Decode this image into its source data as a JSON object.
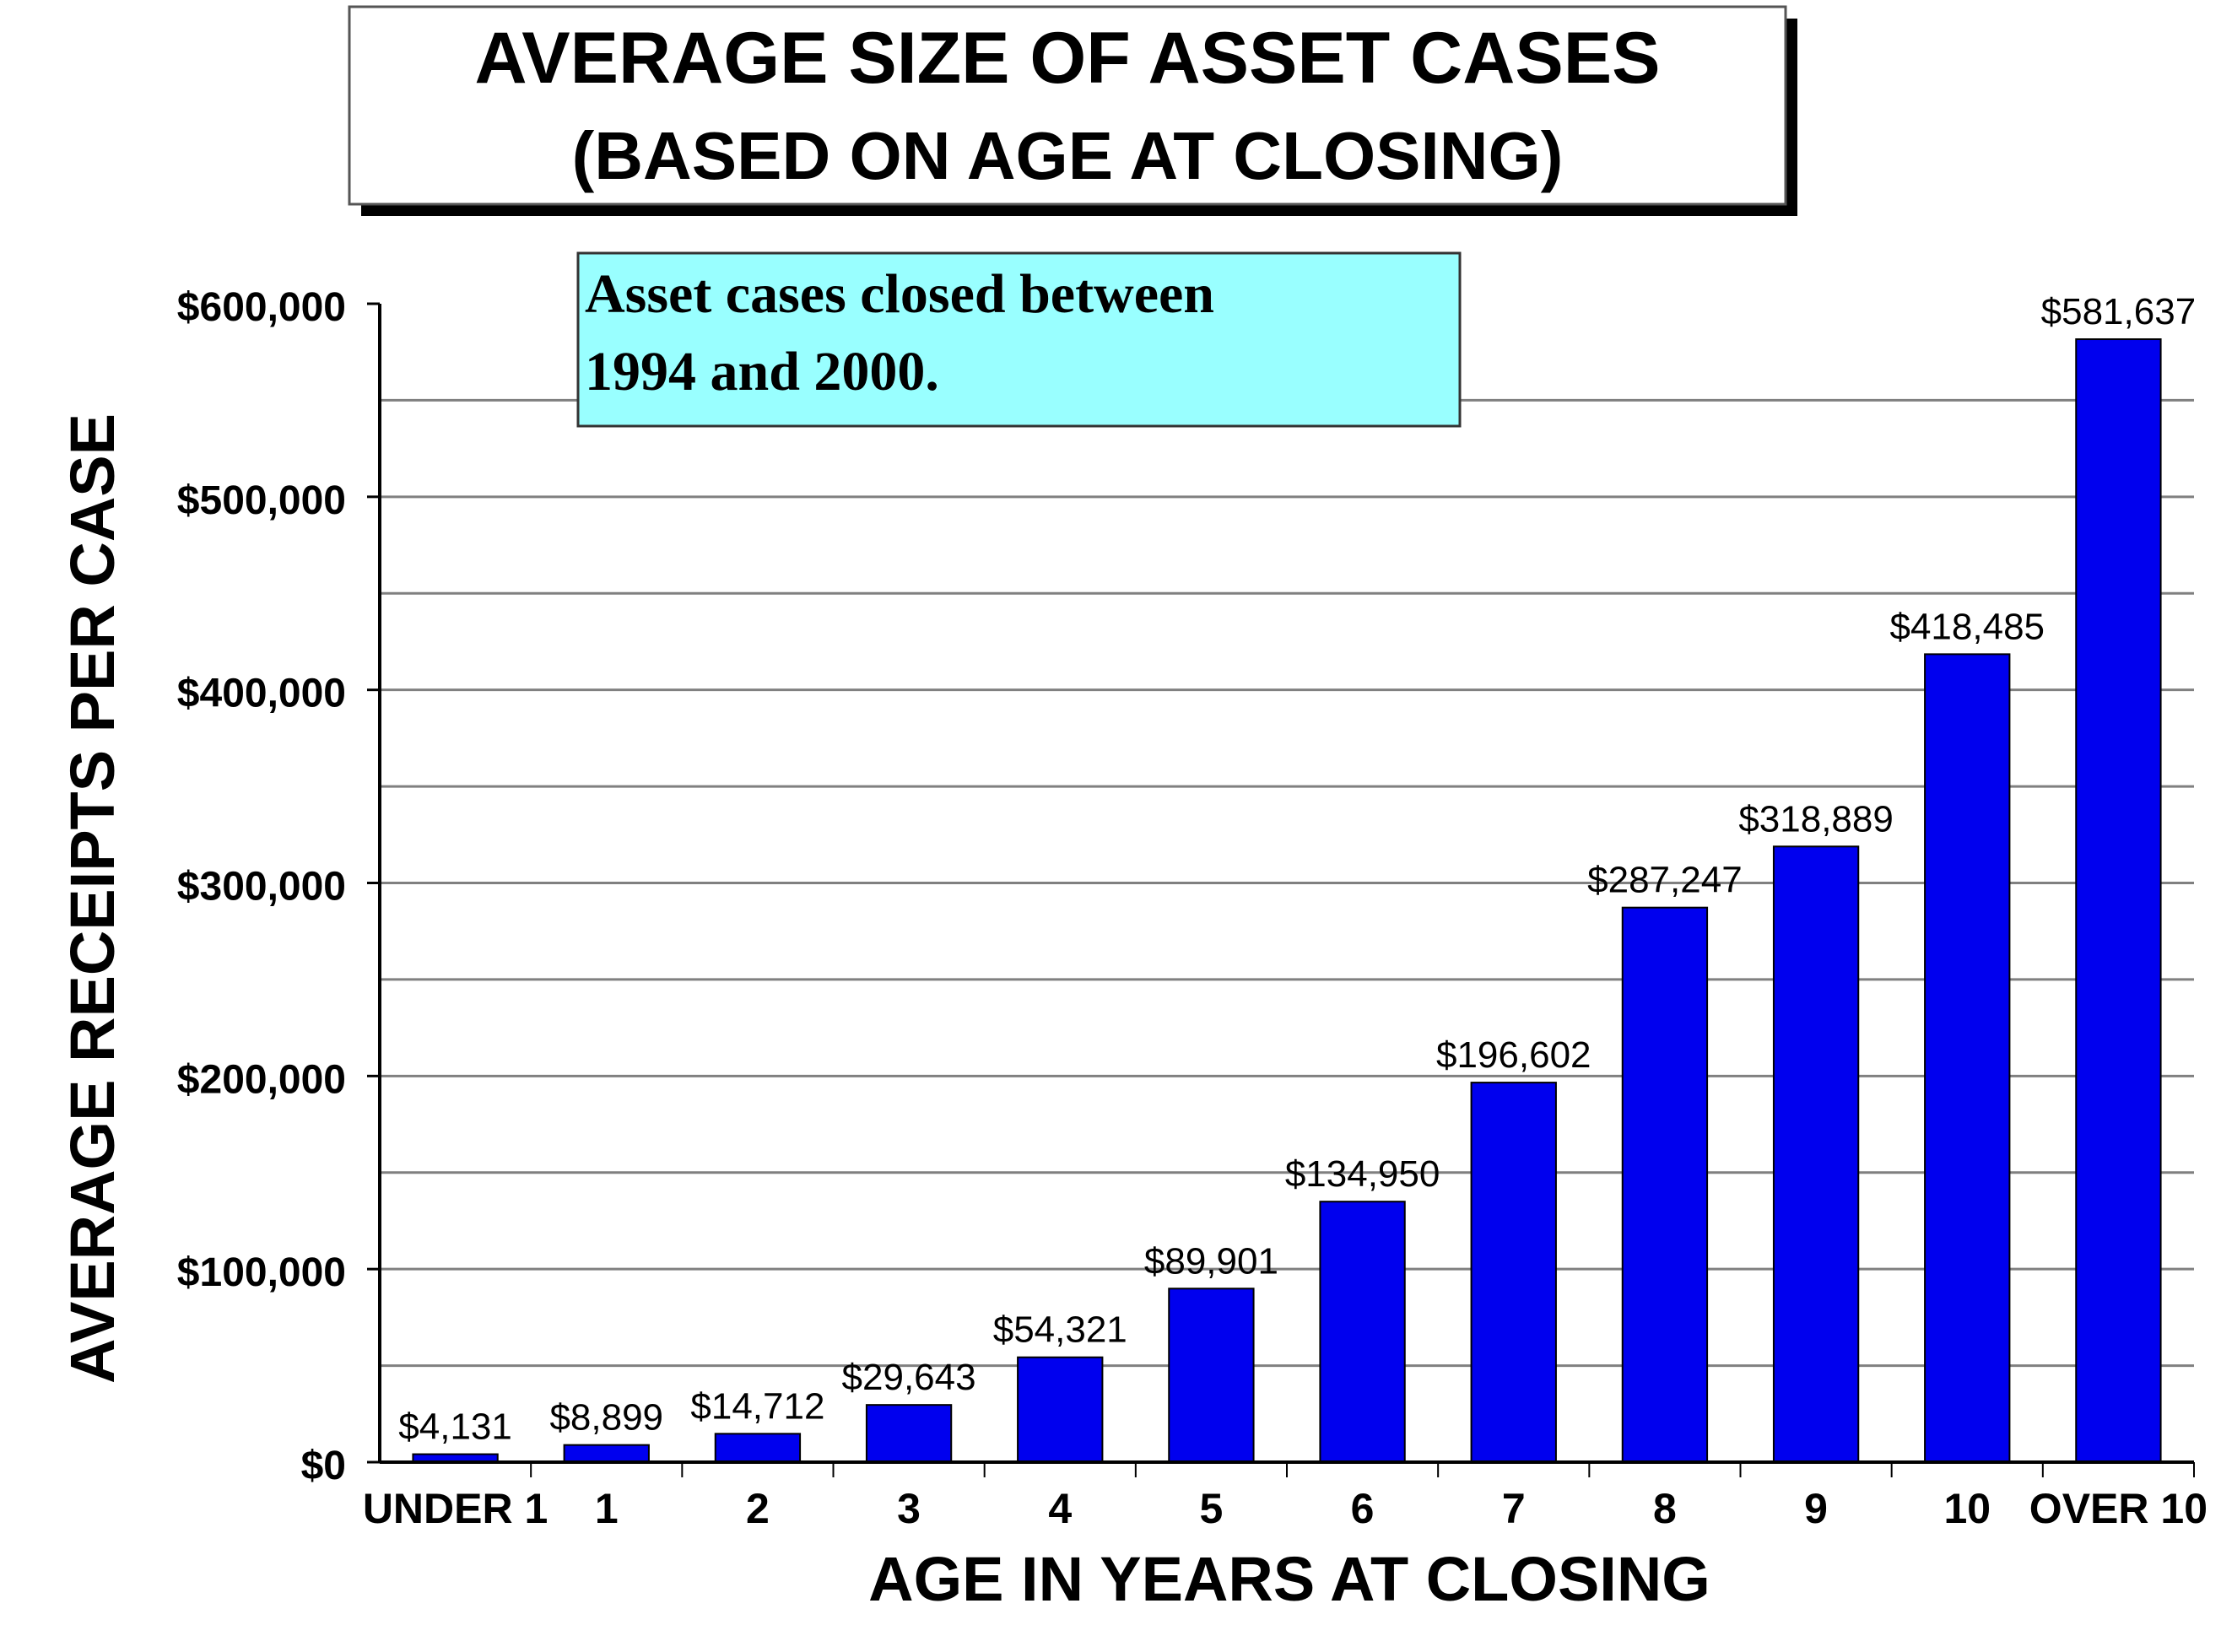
{
  "chart_data": {
    "type": "bar",
    "title": "AVERAGE SIZE OF ASSET CASES",
    "subtitle": "(BASED ON AGE AT CLOSING)",
    "annotation": [
      "Asset cases closed between",
      "1994 and 2000."
    ],
    "xlabel": "AGE IN YEARS AT CLOSING",
    "ylabel": "AVERAGE RECEIPTS PER CASE",
    "categories": [
      "UNDER 1",
      "1",
      "2",
      "3",
      "4",
      "5",
      "6",
      "7",
      "8",
      "9",
      "10",
      "OVER 10"
    ],
    "values": [
      4131,
      8899,
      14712,
      29643,
      54321,
      89901,
      134950,
      196602,
      287247,
      318889,
      418485,
      581637
    ],
    "data_labels": [
      "$4,131",
      "$8,899",
      "$14,712",
      "$29,643",
      "$54,321",
      "$89,901",
      "$134,950",
      "$196,602",
      "$287,247",
      "$318,889",
      "$418,485",
      "$581,637"
    ],
    "ylim": [
      0,
      600000
    ],
    "yticks": [
      0,
      100000,
      200000,
      300000,
      400000,
      500000,
      600000
    ],
    "ytick_labels": [
      "$0",
      "$100,000",
      "$200,000",
      "$300,000",
      "$400,000",
      "$500,000",
      "$600,000"
    ],
    "grid": true,
    "colors": {
      "bar": "#0000ee",
      "annotation_bg": "#99ffff",
      "grid": "#808080"
    }
  }
}
